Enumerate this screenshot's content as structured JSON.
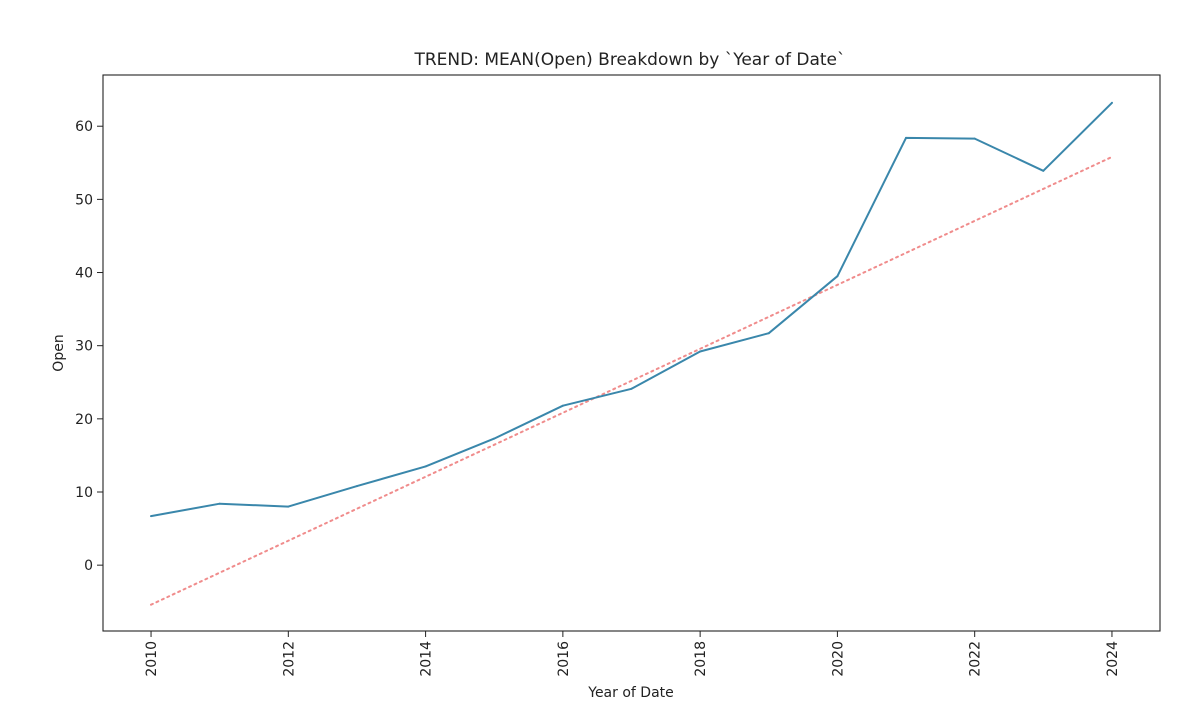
{
  "chart_data": {
    "type": "line",
    "title": "TREND: MEAN(Open) Breakdown by `Year of Date`",
    "xlabel": "Year of Date",
    "ylabel": "Open",
    "x": [
      2010,
      2011,
      2012,
      2013,
      2014,
      2015,
      2016,
      2017,
      2018,
      2019,
      2020,
      2021,
      2022,
      2023,
      2024
    ],
    "series": [
      {
        "name": "",
        "values": [
          6.7,
          8.4,
          8.0,
          10.8,
          13.5,
          17.3,
          21.8,
          24.1,
          29.2,
          31.7,
          39.5,
          58.4,
          58.3,
          53.9,
          63.2
        ],
        "color": "#3a87ab",
        "style": "solid"
      },
      {
        "name": "",
        "values": [
          -5.4,
          55.8
        ],
        "x": [
          2010,
          2024
        ],
        "color": "#f08c8c",
        "style": "dotted"
      }
    ],
    "xlim": [
      2009.3,
      2024.7
    ],
    "ylim": [
      -9.0,
      67.0
    ],
    "xticks": [
      2010,
      2012,
      2014,
      2016,
      2018,
      2020,
      2022,
      2024
    ],
    "yticks": [
      0,
      10,
      20,
      30,
      40,
      50,
      60
    ],
    "grid": false,
    "legend": "none"
  }
}
